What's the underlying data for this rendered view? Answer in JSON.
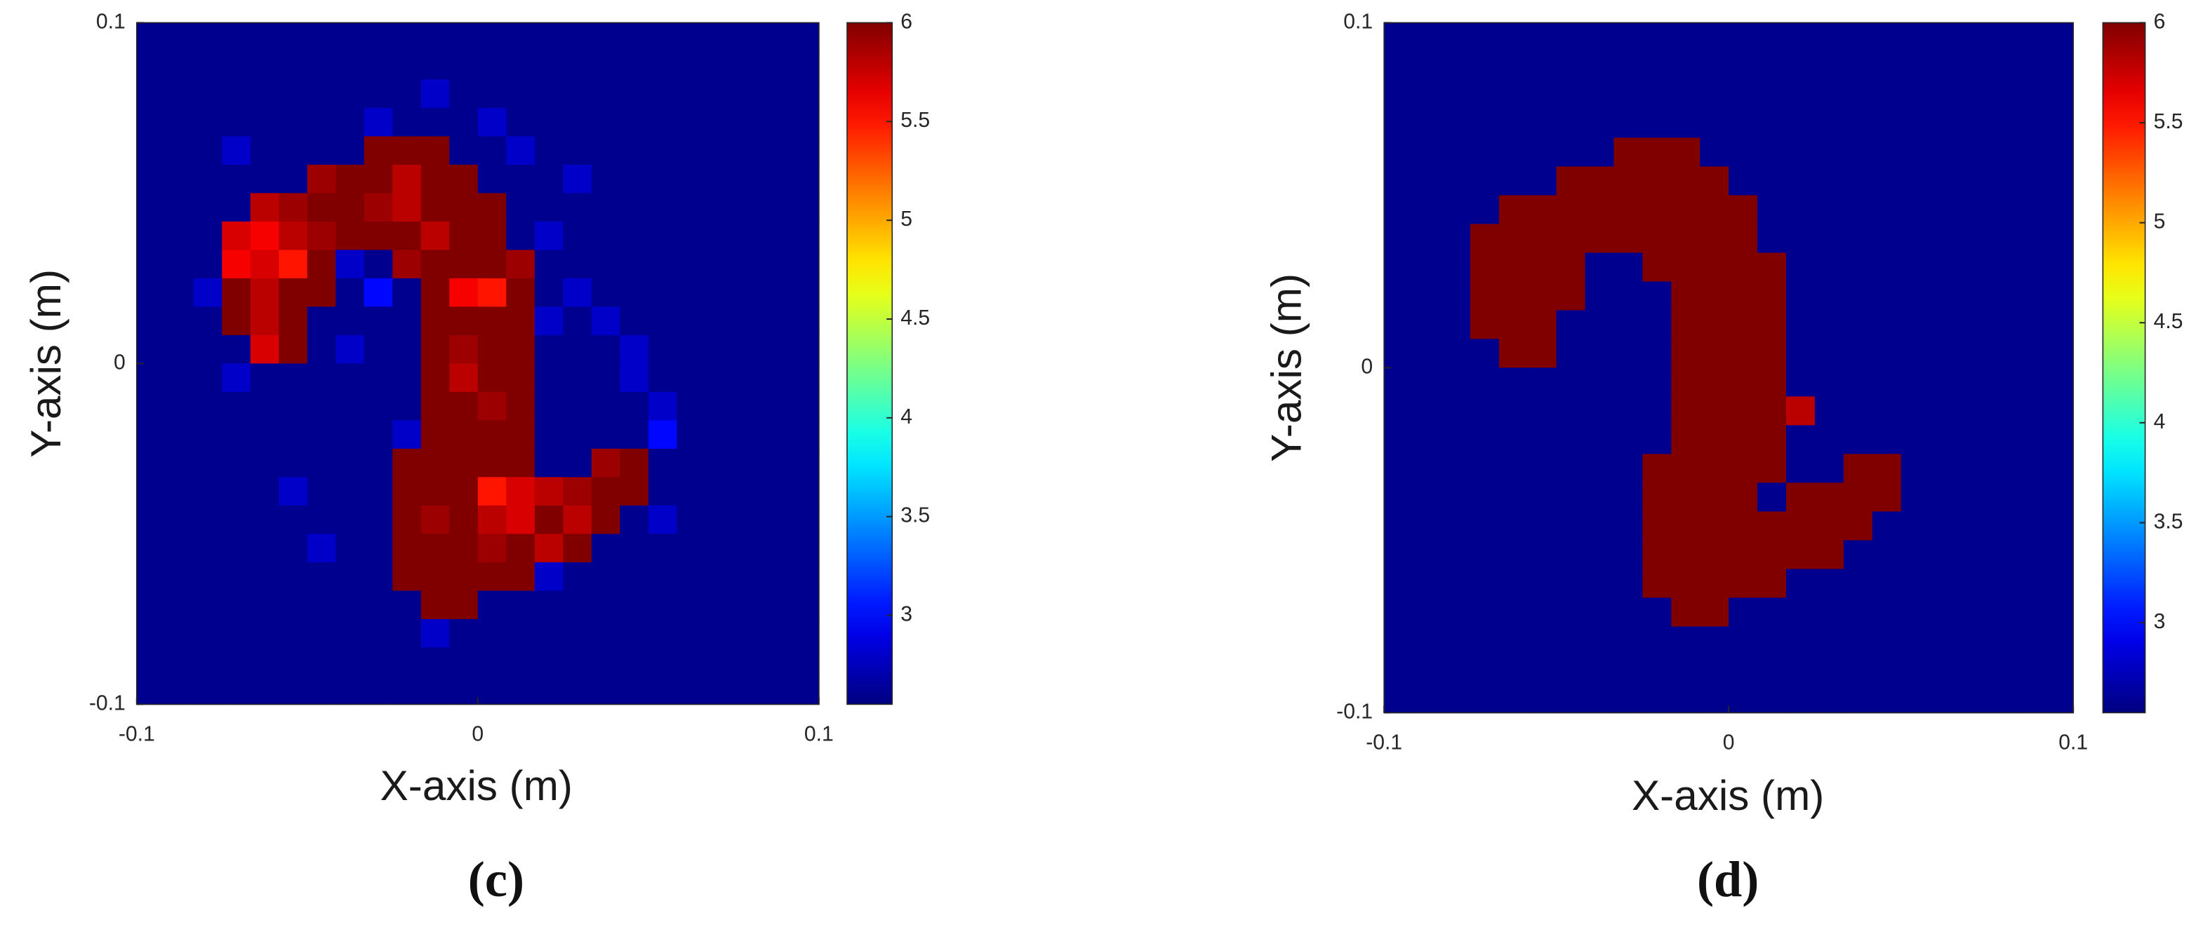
{
  "chart_data": [
    {
      "type": "heatmap",
      "xlabel": "X-axis (m)",
      "ylabel": "Y-axis (m)",
      "panel_label": "(c)",
      "xlim": [
        -0.1,
        0.1
      ],
      "ylim": [
        -0.1,
        0.1
      ],
      "xticks": [
        -0.1,
        0,
        0.1
      ],
      "yticks": [
        -0.1,
        0,
        0.1
      ],
      "clim": [
        2.55,
        6
      ],
      "cticks": [
        3,
        3.5,
        4,
        4.5,
        5,
        5.5,
        6
      ],
      "colormap": "jet",
      "z": [
        [
          2.6,
          2.6,
          2.6,
          2.6,
          2.6,
          2.6,
          2.6,
          2.6,
          2.6,
          2.6,
          2.6,
          2.6,
          2.6,
          2.6,
          2.6,
          2.6,
          2.6,
          2.6,
          2.6,
          2.6,
          2.6,
          2.6,
          2.6,
          2.6
        ],
        [
          2.6,
          2.6,
          2.6,
          2.6,
          2.6,
          2.6,
          2.6,
          2.6,
          2.6,
          2.6,
          2.6,
          2.6,
          2.6,
          2.6,
          2.6,
          2.6,
          2.6,
          2.6,
          2.6,
          2.6,
          2.6,
          2.6,
          2.6,
          2.6
        ],
        [
          2.6,
          2.6,
          2.6,
          2.6,
          2.6,
          2.6,
          2.6,
          2.6,
          2.6,
          2.6,
          2.8,
          2.6,
          2.6,
          2.6,
          2.6,
          2.6,
          2.6,
          2.6,
          2.6,
          2.6,
          2.6,
          2.6,
          2.6,
          2.6
        ],
        [
          2.6,
          2.6,
          2.6,
          2.6,
          2.6,
          2.6,
          2.6,
          2.6,
          2.8,
          2.6,
          2.6,
          2.6,
          2.8,
          2.6,
          2.6,
          2.6,
          2.6,
          2.6,
          2.6,
          2.6,
          2.6,
          2.6,
          2.6,
          2.6
        ],
        [
          2.6,
          2.6,
          2.6,
          2.8,
          2.6,
          2.6,
          2.6,
          2.6,
          6,
          6,
          6,
          2.6,
          2.6,
          2.8,
          2.6,
          2.6,
          2.6,
          2.6,
          2.6,
          2.6,
          2.6,
          2.6,
          2.6,
          2.6
        ],
        [
          2.6,
          2.6,
          2.6,
          2.6,
          2.6,
          2.6,
          5.9,
          6,
          6,
          5.8,
          6,
          6,
          2.6,
          2.6,
          2.6,
          2.8,
          2.6,
          2.6,
          2.6,
          2.6,
          2.6,
          2.6,
          2.6,
          2.6
        ],
        [
          2.6,
          2.6,
          2.6,
          2.6,
          5.8,
          5.9,
          6,
          6,
          5.9,
          5.8,
          6,
          6,
          6,
          2.6,
          2.6,
          2.6,
          2.6,
          2.6,
          2.6,
          2.6,
          2.6,
          2.6,
          2.6,
          2.6
        ],
        [
          2.6,
          2.6,
          2.6,
          5.7,
          5.6,
          5.8,
          5.9,
          6,
          6,
          6,
          5.8,
          6,
          6,
          2.6,
          2.8,
          2.6,
          2.6,
          2.6,
          2.6,
          2.6,
          2.6,
          2.6,
          2.6,
          2.6
        ],
        [
          2.6,
          2.6,
          2.6,
          5.6,
          5.7,
          5.5,
          6,
          2.8,
          2.6,
          5.9,
          6,
          6,
          6,
          5.9,
          2.6,
          2.6,
          2.6,
          2.6,
          2.6,
          2.6,
          2.6,
          2.6,
          2.6,
          2.6
        ],
        [
          2.6,
          2.6,
          2.8,
          6,
          5.8,
          6,
          6,
          2.6,
          3.0,
          2.6,
          6,
          5.6,
          5.5,
          6,
          2.6,
          2.8,
          2.6,
          2.6,
          2.6,
          2.6,
          2.6,
          2.6,
          2.6,
          2.6
        ],
        [
          2.6,
          2.6,
          2.6,
          6,
          5.8,
          6,
          2.6,
          2.6,
          2.6,
          2.6,
          6,
          6,
          6,
          6,
          2.8,
          2.6,
          2.8,
          2.6,
          2.6,
          2.6,
          2.6,
          2.6,
          2.6,
          2.6
        ],
        [
          2.6,
          2.6,
          2.6,
          2.6,
          5.7,
          6,
          2.6,
          2.8,
          2.6,
          2.6,
          6,
          5.9,
          6,
          6,
          2.6,
          2.6,
          2.6,
          2.8,
          2.6,
          2.6,
          2.6,
          2.6,
          2.6,
          2.6
        ],
        [
          2.6,
          2.6,
          2.6,
          2.8,
          2.6,
          2.6,
          2.6,
          2.6,
          2.6,
          2.6,
          6,
          5.8,
          6,
          6,
          2.6,
          2.6,
          2.6,
          2.8,
          2.6,
          2.6,
          2.6,
          2.6,
          2.6,
          2.6
        ],
        [
          2.6,
          2.6,
          2.6,
          2.6,
          2.6,
          2.6,
          2.6,
          2.6,
          2.6,
          2.6,
          6,
          6,
          5.9,
          6,
          2.6,
          2.6,
          2.6,
          2.6,
          2.8,
          2.6,
          2.6,
          2.6,
          2.6,
          2.6
        ],
        [
          2.6,
          2.6,
          2.6,
          2.6,
          2.6,
          2.6,
          2.6,
          2.6,
          2.6,
          2.8,
          6,
          6,
          6,
          6,
          2.6,
          2.6,
          2.6,
          2.6,
          3.0,
          2.6,
          2.6,
          2.6,
          2.6,
          2.6
        ],
        [
          2.6,
          2.6,
          2.6,
          2.6,
          2.6,
          2.6,
          2.6,
          2.6,
          2.6,
          6,
          6,
          6,
          6,
          6,
          2.6,
          2.6,
          5.9,
          6,
          2.6,
          2.6,
          2.6,
          2.6,
          2.6,
          2.6
        ],
        [
          2.6,
          2.6,
          2.6,
          2.6,
          2.6,
          2.8,
          2.6,
          2.6,
          2.6,
          6,
          6,
          6,
          5.5,
          5.7,
          5.8,
          5.9,
          6,
          6,
          2.6,
          2.6,
          2.6,
          2.6,
          2.6,
          2.6
        ],
        [
          2.6,
          2.6,
          2.6,
          2.6,
          2.6,
          2.6,
          2.6,
          2.6,
          2.6,
          6,
          5.9,
          6,
          5.8,
          5.7,
          6,
          5.8,
          6,
          2.6,
          2.8,
          2.6,
          2.6,
          2.6,
          2.6,
          2.6
        ],
        [
          2.6,
          2.6,
          2.6,
          2.6,
          2.6,
          2.6,
          2.8,
          2.6,
          2.6,
          6,
          6,
          6,
          5.9,
          6,
          5.8,
          6,
          2.6,
          2.6,
          2.6,
          2.6,
          2.6,
          2.6,
          2.6,
          2.6
        ],
        [
          2.6,
          2.6,
          2.6,
          2.6,
          2.6,
          2.6,
          2.6,
          2.6,
          2.6,
          6,
          6,
          6,
          6,
          6,
          2.8,
          2.6,
          2.6,
          2.6,
          2.6,
          2.6,
          2.6,
          2.6,
          2.6,
          2.6
        ],
        [
          2.6,
          2.6,
          2.6,
          2.6,
          2.6,
          2.6,
          2.6,
          2.6,
          2.6,
          2.6,
          6,
          6,
          2.6,
          2.6,
          2.6,
          2.6,
          2.6,
          2.6,
          2.6,
          2.6,
          2.6,
          2.6,
          2.6,
          2.6
        ],
        [
          2.6,
          2.6,
          2.6,
          2.6,
          2.6,
          2.6,
          2.6,
          2.6,
          2.6,
          2.6,
          2.8,
          2.6,
          2.6,
          2.6,
          2.6,
          2.6,
          2.6,
          2.6,
          2.6,
          2.6,
          2.6,
          2.6,
          2.6,
          2.6
        ],
        [
          2.6,
          2.6,
          2.6,
          2.6,
          2.6,
          2.6,
          2.6,
          2.6,
          2.6,
          2.6,
          2.6,
          2.6,
          2.6,
          2.6,
          2.6,
          2.6,
          2.6,
          2.6,
          2.6,
          2.6,
          2.6,
          2.6,
          2.6,
          2.6
        ],
        [
          2.6,
          2.6,
          2.6,
          2.6,
          2.6,
          2.6,
          2.6,
          2.6,
          2.6,
          2.6,
          2.6,
          2.6,
          2.6,
          2.6,
          2.6,
          2.6,
          2.6,
          2.6,
          2.6,
          2.6,
          2.6,
          2.6,
          2.6,
          2.6
        ]
      ]
    },
    {
      "type": "heatmap",
      "xlabel": "X-axis (m)",
      "ylabel": "Y-axis (m)",
      "panel_label": "(d)",
      "xlim": [
        -0.1,
        0.1
      ],
      "ylim": [
        -0.1,
        0.1
      ],
      "xticks": [
        -0.1,
        0,
        0.1
      ],
      "yticks": [
        -0.1,
        0,
        0.1
      ],
      "clim": [
        2.55,
        6
      ],
      "cticks": [
        3,
        3.5,
        4,
        4.5,
        5,
        5.5,
        6
      ],
      "colormap": "jet",
      "z": [
        [
          2.6,
          2.6,
          2.6,
          2.6,
          2.6,
          2.6,
          2.6,
          2.6,
          2.6,
          2.6,
          2.6,
          2.6,
          2.6,
          2.6,
          2.6,
          2.6,
          2.6,
          2.6,
          2.6,
          2.6,
          2.6,
          2.6,
          2.6,
          2.6
        ],
        [
          2.6,
          2.6,
          2.6,
          2.6,
          2.6,
          2.6,
          2.6,
          2.6,
          2.6,
          2.6,
          2.6,
          2.6,
          2.6,
          2.6,
          2.6,
          2.6,
          2.6,
          2.6,
          2.6,
          2.6,
          2.6,
          2.6,
          2.6,
          2.6
        ],
        [
          2.6,
          2.6,
          2.6,
          2.6,
          2.6,
          2.6,
          2.6,
          2.6,
          2.6,
          2.6,
          2.6,
          2.6,
          2.6,
          2.6,
          2.6,
          2.6,
          2.6,
          2.6,
          2.6,
          2.6,
          2.6,
          2.6,
          2.6,
          2.6
        ],
        [
          2.6,
          2.6,
          2.6,
          2.6,
          2.6,
          2.6,
          2.6,
          2.6,
          2.6,
          2.6,
          2.6,
          2.6,
          2.6,
          2.6,
          2.6,
          2.6,
          2.6,
          2.6,
          2.6,
          2.6,
          2.6,
          2.6,
          2.6,
          2.6
        ],
        [
          2.6,
          2.6,
          2.6,
          2.6,
          2.6,
          2.6,
          2.6,
          2.6,
          6,
          6,
          6,
          2.6,
          2.6,
          2.6,
          2.6,
          2.6,
          2.6,
          2.6,
          2.6,
          2.6,
          2.6,
          2.6,
          2.6,
          2.6
        ],
        [
          2.6,
          2.6,
          2.6,
          2.6,
          2.6,
          2.6,
          6,
          6,
          6,
          6,
          6,
          6,
          2.6,
          2.6,
          2.6,
          2.6,
          2.6,
          2.6,
          2.6,
          2.6,
          2.6,
          2.6,
          2.6,
          2.6
        ],
        [
          2.6,
          2.6,
          2.6,
          2.6,
          6,
          6,
          6,
          6,
          6,
          6,
          6,
          6,
          6,
          2.6,
          2.6,
          2.6,
          2.6,
          2.6,
          2.6,
          2.6,
          2.6,
          2.6,
          2.6,
          2.6
        ],
        [
          2.6,
          2.6,
          2.6,
          6,
          6,
          6,
          6,
          6,
          6,
          6,
          6,
          6,
          6,
          2.6,
          2.6,
          2.6,
          2.6,
          2.6,
          2.6,
          2.6,
          2.6,
          2.6,
          2.6,
          2.6
        ],
        [
          2.6,
          2.6,
          2.6,
          6,
          6,
          6,
          6,
          2.6,
          2.6,
          6,
          6,
          6,
          6,
          6,
          2.6,
          2.6,
          2.6,
          2.6,
          2.6,
          2.6,
          2.6,
          2.6,
          2.6,
          2.6
        ],
        [
          2.6,
          2.6,
          2.6,
          6,
          6,
          6,
          6,
          2.6,
          2.6,
          2.6,
          6,
          6,
          6,
          6,
          2.6,
          2.6,
          2.6,
          2.6,
          2.6,
          2.6,
          2.6,
          2.6,
          2.6,
          2.6
        ],
        [
          2.6,
          2.6,
          2.6,
          6,
          6,
          6,
          2.6,
          2.6,
          2.6,
          2.6,
          6,
          6,
          6,
          6,
          2.6,
          2.6,
          2.6,
          2.6,
          2.6,
          2.6,
          2.6,
          2.6,
          2.6,
          2.6
        ],
        [
          2.6,
          2.6,
          2.6,
          2.6,
          6,
          6,
          2.6,
          2.6,
          2.6,
          2.6,
          6,
          6,
          6,
          6,
          2.6,
          2.6,
          2.6,
          2.6,
          2.6,
          2.6,
          2.6,
          2.6,
          2.6,
          2.6
        ],
        [
          2.6,
          2.6,
          2.6,
          2.6,
          2.6,
          2.6,
          2.6,
          2.6,
          2.6,
          2.6,
          6,
          6,
          6,
          6,
          2.6,
          2.6,
          2.6,
          2.6,
          2.6,
          2.6,
          2.6,
          2.6,
          2.6,
          2.6
        ],
        [
          2.6,
          2.6,
          2.6,
          2.6,
          2.6,
          2.6,
          2.6,
          2.6,
          2.6,
          2.6,
          6,
          6,
          6,
          6,
          5.8,
          2.6,
          2.6,
          2.6,
          2.6,
          2.6,
          2.6,
          2.6,
          2.6,
          2.6
        ],
        [
          2.6,
          2.6,
          2.6,
          2.6,
          2.6,
          2.6,
          2.6,
          2.6,
          2.6,
          2.6,
          6,
          6,
          6,
          6,
          2.6,
          2.6,
          2.6,
          2.6,
          2.6,
          2.6,
          2.6,
          2.6,
          2.6,
          2.6
        ],
        [
          2.6,
          2.6,
          2.6,
          2.6,
          2.6,
          2.6,
          2.6,
          2.6,
          2.6,
          6,
          6,
          6,
          6,
          6,
          2.6,
          2.6,
          6,
          6,
          2.6,
          2.6,
          2.6,
          2.6,
          2.6,
          2.6
        ],
        [
          2.6,
          2.6,
          2.6,
          2.6,
          2.6,
          2.6,
          2.6,
          2.6,
          2.6,
          6,
          6,
          6,
          6,
          2.6,
          6,
          6,
          6,
          6,
          2.6,
          2.6,
          2.6,
          2.6,
          2.6,
          2.6
        ],
        [
          2.6,
          2.6,
          2.6,
          2.6,
          2.6,
          2.6,
          2.6,
          2.6,
          2.6,
          6,
          6,
          6,
          6,
          6,
          6,
          6,
          6,
          2.6,
          2.6,
          2.6,
          2.6,
          2.6,
          2.6,
          2.6
        ],
        [
          2.6,
          2.6,
          2.6,
          2.6,
          2.6,
          2.6,
          2.6,
          2.6,
          2.6,
          6,
          6,
          6,
          6,
          6,
          6,
          6,
          2.6,
          2.6,
          2.6,
          2.6,
          2.6,
          2.6,
          2.6,
          2.6
        ],
        [
          2.6,
          2.6,
          2.6,
          2.6,
          2.6,
          2.6,
          2.6,
          2.6,
          2.6,
          6,
          6,
          6,
          6,
          6,
          2.6,
          2.6,
          2.6,
          2.6,
          2.6,
          2.6,
          2.6,
          2.6,
          2.6,
          2.6
        ],
        [
          2.6,
          2.6,
          2.6,
          2.6,
          2.6,
          2.6,
          2.6,
          2.6,
          2.6,
          2.6,
          6,
          6,
          2.6,
          2.6,
          2.6,
          2.6,
          2.6,
          2.6,
          2.6,
          2.6,
          2.6,
          2.6,
          2.6,
          2.6
        ],
        [
          2.6,
          2.6,
          2.6,
          2.6,
          2.6,
          2.6,
          2.6,
          2.6,
          2.6,
          2.6,
          2.6,
          2.6,
          2.6,
          2.6,
          2.6,
          2.6,
          2.6,
          2.6,
          2.6,
          2.6,
          2.6,
          2.6,
          2.6,
          2.6
        ],
        [
          2.6,
          2.6,
          2.6,
          2.6,
          2.6,
          2.6,
          2.6,
          2.6,
          2.6,
          2.6,
          2.6,
          2.6,
          2.6,
          2.6,
          2.6,
          2.6,
          2.6,
          2.6,
          2.6,
          2.6,
          2.6,
          2.6,
          2.6,
          2.6
        ],
        [
          2.6,
          2.6,
          2.6,
          2.6,
          2.6,
          2.6,
          2.6,
          2.6,
          2.6,
          2.6,
          2.6,
          2.6,
          2.6,
          2.6,
          2.6,
          2.6,
          2.6,
          2.6,
          2.6,
          2.6,
          2.6,
          2.6,
          2.6,
          2.6
        ]
      ]
    }
  ]
}
